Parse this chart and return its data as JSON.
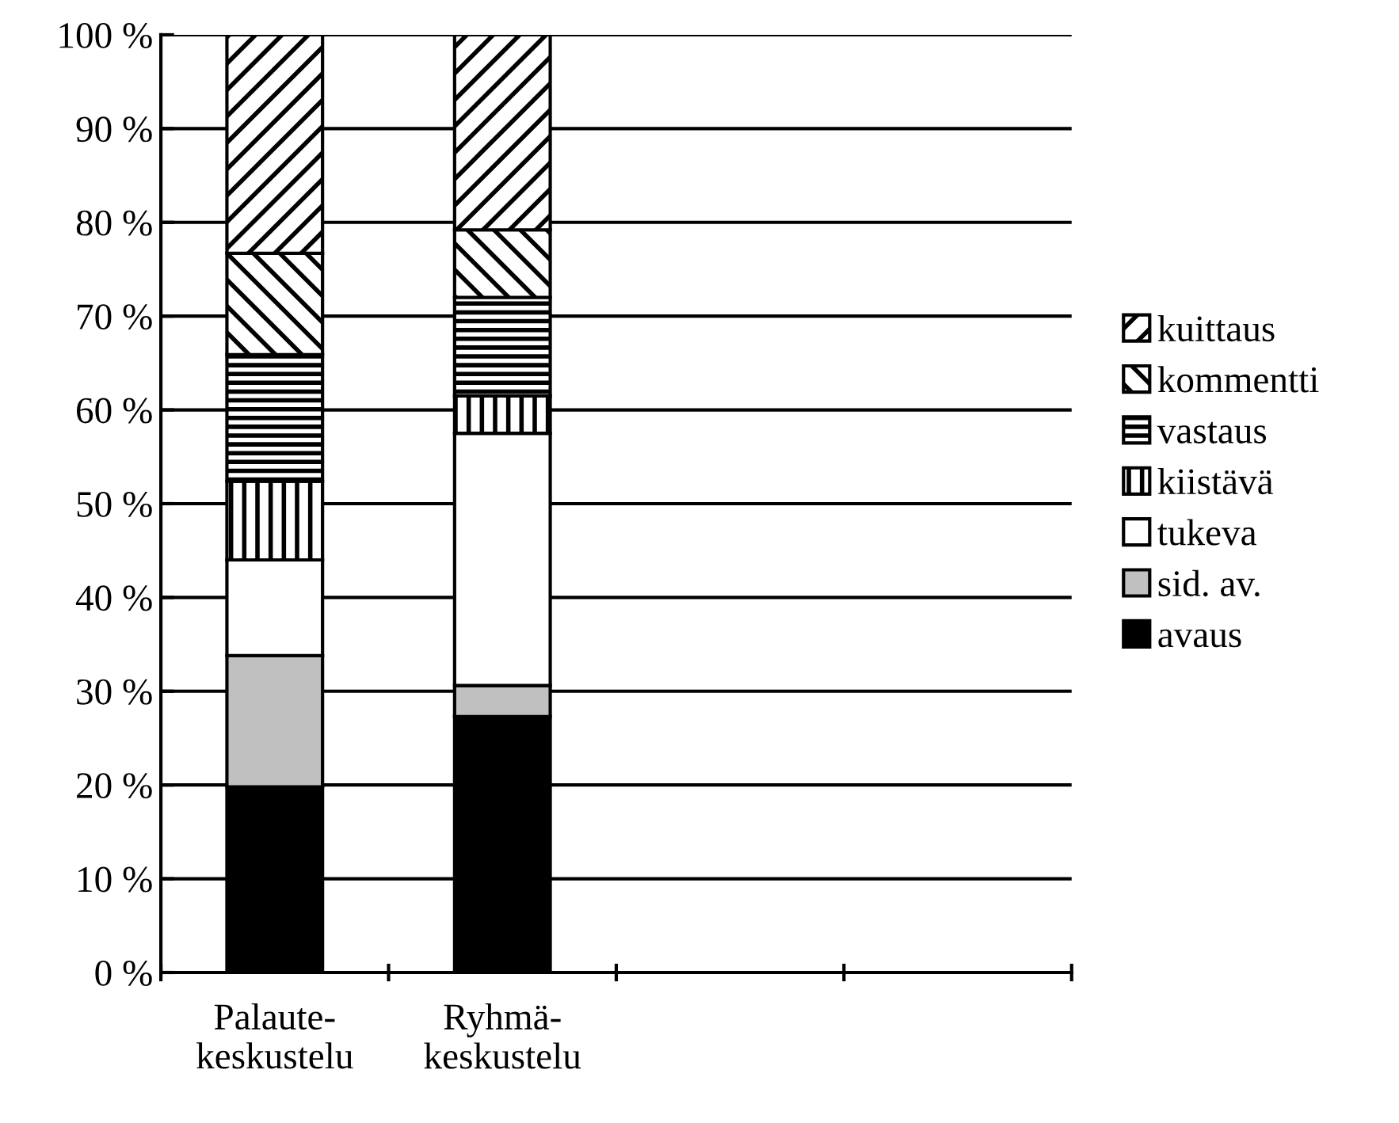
{
  "chart_data": {
    "type": "bar",
    "stacked": true,
    "categories": [
      "Palaute-\nkeskustelu",
      "Ryhmä-\nkeskustelu",
      null,
      null
    ],
    "series": [
      {
        "name": "avaus",
        "color": "#000000",
        "values": [
          19.8,
          27.3,
          null,
          null
        ]
      },
      {
        "name": "sid. av.",
        "color": "#c0c0c0",
        "values": [
          14.0,
          3.3,
          null,
          null
        ]
      },
      {
        "name": "tukeva",
        "color": "#ffffff",
        "values": [
          10.2,
          26.9,
          null,
          null
        ]
      },
      {
        "name": "kiistävä",
        "color": "#000000",
        "values": [
          8.4,
          4.0,
          null,
          null
        ]
      },
      {
        "name": "vastaus",
        "color": "#000000",
        "values": [
          13.5,
          10.5,
          null,
          null
        ]
      },
      {
        "name": "kommentti",
        "color": "#000000",
        "values": [
          10.8,
          7.2,
          null,
          null
        ]
      },
      {
        "name": "kuittaus",
        "color": "#000000",
        "values": [
          23.3,
          20.8,
          null,
          null
        ]
      }
    ],
    "ylim": [
      0,
      100
    ],
    "yticks": [
      {
        "value": 0,
        "label": "0 %"
      },
      {
        "value": 10,
        "label": "10 %"
      },
      {
        "value": 20,
        "label": "20 %"
      },
      {
        "value": 30,
        "label": "30 %"
      },
      {
        "value": 40,
        "label": "40 %"
      },
      {
        "value": 50,
        "label": "50 %"
      },
      {
        "value": 60,
        "label": "60 %"
      },
      {
        "value": 70,
        "label": "70 %"
      },
      {
        "value": 80,
        "label": "80 %"
      },
      {
        "value": 90,
        "label": "90 %"
      },
      {
        "value": 100,
        "label": "100 %"
      }
    ],
    "grid": "y",
    "legend": "right"
  }
}
